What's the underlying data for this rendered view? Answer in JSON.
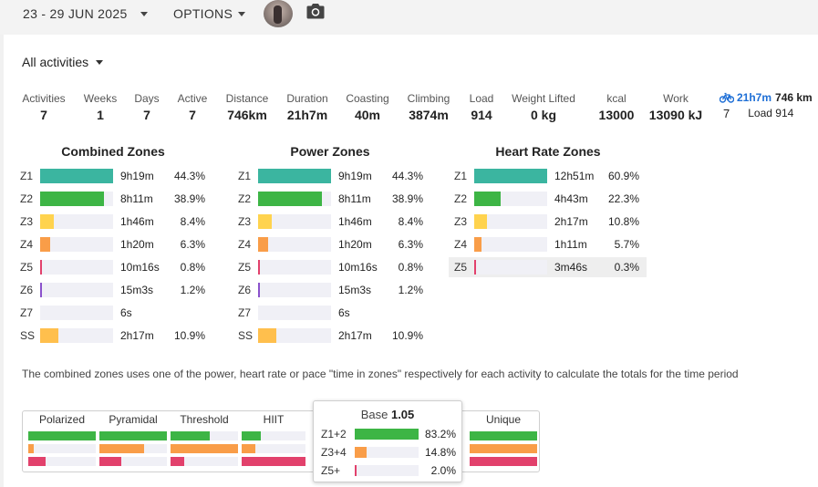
{
  "topbar": {
    "date_range": "23 - 29 JUN 2025",
    "options_label": "OPTIONS",
    "avatar_icon": "user-avatar",
    "camera_icon": "camera-icon"
  },
  "activity_filter": {
    "label": "All activities"
  },
  "summary": [
    {
      "label": "Activities",
      "value": "7"
    },
    {
      "label": "Weeks",
      "value": "1"
    },
    {
      "label": "Days",
      "value": "7"
    },
    {
      "label": "Active",
      "value": "7"
    },
    {
      "label": "Distance",
      "value": "746km"
    },
    {
      "label": "Duration",
      "value": "21h7m"
    },
    {
      "label": "Coasting",
      "value": "40m"
    },
    {
      "label": "Climbing",
      "value": "3874m"
    },
    {
      "label": "Load",
      "value": "914"
    },
    {
      "label": "Weight Lifted",
      "value": "0 kg"
    },
    {
      "label": "kcal",
      "value": "13000"
    },
    {
      "label": "Work",
      "value": "13090 kJ"
    }
  ],
  "ride_summary": {
    "icon": "bicycle-icon",
    "duration": "21h7m",
    "distance": "746 km",
    "count": "7",
    "load": "Load 914"
  },
  "zone_panels": [
    {
      "title": "Combined Zones",
      "rows": [
        {
          "zone": "Z1",
          "time": "9h19m",
          "pct": "44.3%",
          "frac": 1.0,
          "color": "#3bb5a0"
        },
        {
          "zone": "Z2",
          "time": "8h11m",
          "pct": "38.9%",
          "frac": 0.88,
          "color": "#3db545"
        },
        {
          "zone": "Z3",
          "time": "1h46m",
          "pct": "8.4%",
          "frac": 0.19,
          "color": "#ffd34e"
        },
        {
          "zone": "Z4",
          "time": "1h20m",
          "pct": "6.3%",
          "frac": 0.14,
          "color": "#f99d48"
        },
        {
          "zone": "Z5",
          "time": "10m16s",
          "pct": "0.8%",
          "frac": 0.02,
          "color": "#e2416c"
        },
        {
          "zone": "Z6",
          "time": "15m3s",
          "pct": "1.2%",
          "frac": 0.03,
          "color": "#8b52cc"
        },
        {
          "zone": "Z7",
          "time": "6s",
          "pct": "",
          "frac": 0.0,
          "color": "#444444"
        },
        {
          "zone": "SS",
          "time": "2h17m",
          "pct": "10.9%",
          "frac": 0.25,
          "color": "#ffbf4d"
        }
      ]
    },
    {
      "title": "Power Zones",
      "rows": [
        {
          "zone": "Z1",
          "time": "9h19m",
          "pct": "44.3%",
          "frac": 1.0,
          "color": "#3bb5a0"
        },
        {
          "zone": "Z2",
          "time": "8h11m",
          "pct": "38.9%",
          "frac": 0.88,
          "color": "#3db545"
        },
        {
          "zone": "Z3",
          "time": "1h46m",
          "pct": "8.4%",
          "frac": 0.19,
          "color": "#ffd34e"
        },
        {
          "zone": "Z4",
          "time": "1h20m",
          "pct": "6.3%",
          "frac": 0.14,
          "color": "#f99d48"
        },
        {
          "zone": "Z5",
          "time": "10m16s",
          "pct": "0.8%",
          "frac": 0.02,
          "color": "#e2416c"
        },
        {
          "zone": "Z6",
          "time": "15m3s",
          "pct": "1.2%",
          "frac": 0.03,
          "color": "#8b52cc"
        },
        {
          "zone": "Z7",
          "time": "6s",
          "pct": "",
          "frac": 0.0,
          "color": "#444444"
        },
        {
          "zone": "SS",
          "time": "2h17m",
          "pct": "10.9%",
          "frac": 0.25,
          "color": "#ffbf4d"
        }
      ]
    },
    {
      "title": "Heart Rate Zones",
      "rows": [
        {
          "zone": "Z1",
          "time": "12h51m",
          "pct": "60.9%",
          "frac": 1.0,
          "color": "#3bb5a0"
        },
        {
          "zone": "Z2",
          "time": "4h43m",
          "pct": "22.3%",
          "frac": 0.36,
          "color": "#3db545"
        },
        {
          "zone": "Z3",
          "time": "2h17m",
          "pct": "10.8%",
          "frac": 0.18,
          "color": "#ffd34e"
        },
        {
          "zone": "Z4",
          "time": "1h11m",
          "pct": "5.7%",
          "frac": 0.1,
          "color": "#f99d48"
        },
        {
          "zone": "Z5",
          "time": "3m46s",
          "pct": "0.3%",
          "frac": 0.01,
          "color": "#e2416c",
          "highlight": true
        }
      ]
    }
  ],
  "note": "The combined zones uses one of the power, heart rate or pace \"time in zones\" respectively for each activity to calculate the totals for the time period",
  "distributions": [
    {
      "label": "Polarized",
      "bars": [
        {
          "frac": 1.0,
          "color": "#3db545"
        },
        {
          "frac": 0.08,
          "color": "#f99d48"
        },
        {
          "frac": 0.25,
          "color": "#e2416c"
        }
      ]
    },
    {
      "label": "Pyramidal",
      "bars": [
        {
          "frac": 1.0,
          "color": "#3db545"
        },
        {
          "frac": 0.66,
          "color": "#f99d48"
        },
        {
          "frac": 0.33,
          "color": "#e2416c"
        }
      ]
    },
    {
      "label": "Threshold",
      "bars": [
        {
          "frac": 0.58,
          "color": "#3db545"
        },
        {
          "frac": 1.0,
          "color": "#f99d48"
        },
        {
          "frac": 0.2,
          "color": "#e2416c"
        }
      ]
    },
    {
      "label": "HIIT",
      "bars": [
        {
          "frac": 0.3,
          "color": "#3db545"
        },
        {
          "frac": 0.22,
          "color": "#f99d48"
        },
        {
          "frac": 1.0,
          "color": "#e2416c"
        }
      ]
    },
    {
      "label": "Unique",
      "bars": [
        {
          "frac": 1.0,
          "color": "#3db545"
        },
        {
          "frac": 1.0,
          "color": "#f99d48"
        },
        {
          "frac": 1.0,
          "color": "#e2416c"
        }
      ]
    }
  ],
  "base_tooltip": {
    "title": "Base",
    "value": "1.05",
    "rows": [
      {
        "label": "Z1+2",
        "pct": "83.2%",
        "frac": 1.0,
        "color": "#3db545"
      },
      {
        "label": "Z3+4",
        "pct": "14.8%",
        "frac": 0.18,
        "color": "#f99d48"
      },
      {
        "label": "Z5+",
        "pct": "2.0%",
        "frac": 0.02,
        "color": "#e2416c"
      }
    ]
  }
}
